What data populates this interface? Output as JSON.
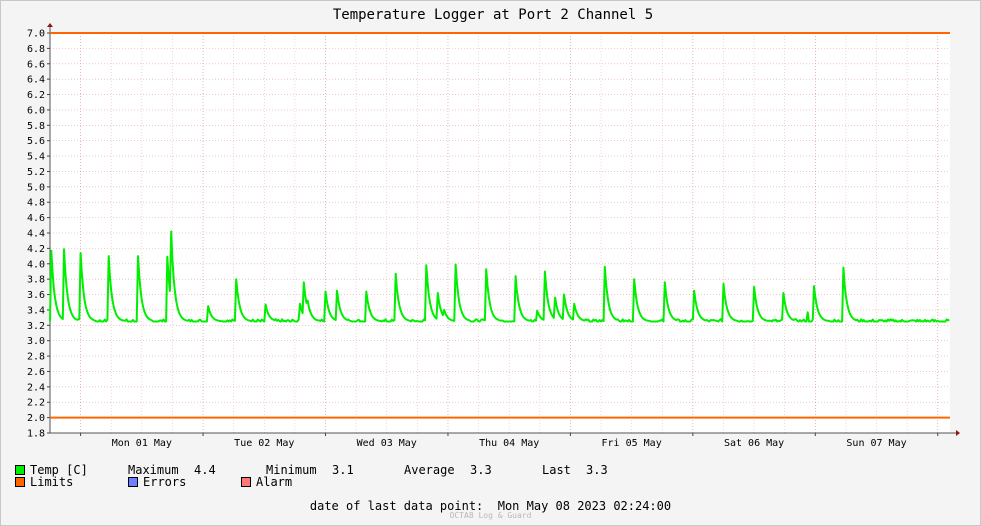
{
  "chart_data": {
    "type": "line",
    "title": "Temperature Logger at Port 2 Channel 5",
    "xlabel": "",
    "ylabel": "",
    "ylim": [
      1.8,
      7.0
    ],
    "y_ticks": [
      "1.8",
      "2.0",
      "2.2",
      "2.4",
      "2.6",
      "2.8",
      "3.0",
      "3.2",
      "3.4",
      "3.6",
      "3.8",
      "4.0",
      "4.2",
      "4.4",
      "4.6",
      "4.8",
      "5.0",
      "5.2",
      "5.4",
      "5.6",
      "5.8",
      "6.0",
      "6.2",
      "6.4",
      "6.6",
      "6.8",
      "7.0"
    ],
    "xlim": [
      "2023-04-30 18:00",
      "2023-05-08 02:24"
    ],
    "x_ticks": [
      {
        "label": "Mon 01 May",
        "date": "2023-05-01"
      },
      {
        "label": "Tue 02 May",
        "date": "2023-05-02"
      },
      {
        "label": "Wed 03 May",
        "date": "2023-05-03"
      },
      {
        "label": "Thu 04 May",
        "date": "2023-05-04"
      },
      {
        "label": "Fri 05 May",
        "date": "2023-05-05"
      },
      {
        "label": "Sat 06 May",
        "date": "2023-05-06"
      },
      {
        "label": "Sun 07 May",
        "date": "2023-05-07"
      }
    ],
    "grid": true,
    "baseline": 3.25,
    "series": [
      {
        "name": "Temp [C]",
        "color": "#00ee00",
        "peaks": [
          {
            "x": "2023-04-30 18:15",
            "y": 4.17
          },
          {
            "x": "2023-04-30 20:45",
            "y": 4.19
          },
          {
            "x": "2023-05-01 00:00",
            "y": 4.14
          },
          {
            "x": "2023-05-01 05:30",
            "y": 4.1
          },
          {
            "x": "2023-05-01 11:15",
            "y": 4.1
          },
          {
            "x": "2023-05-01 17:00",
            "y": 4.09
          },
          {
            "x": "2023-05-01 17:45",
            "y": 4.42
          },
          {
            "x": "2023-05-01 18:15",
            "y": 3.75
          },
          {
            "x": "2023-05-02 01:00",
            "y": 3.45
          },
          {
            "x": "2023-05-02 06:30",
            "y": 3.8
          },
          {
            "x": "2023-05-02 12:15",
            "y": 3.47
          },
          {
            "x": "2023-05-02 19:00",
            "y": 3.48
          },
          {
            "x": "2023-05-02 19:45",
            "y": 3.76
          },
          {
            "x": "2023-05-02 20:30",
            "y": 3.52
          },
          {
            "x": "2023-05-03 00:00",
            "y": 3.64
          },
          {
            "x": "2023-05-03 02:15",
            "y": 3.65
          },
          {
            "x": "2023-05-03 08:00",
            "y": 3.64
          },
          {
            "x": "2023-05-03 13:45",
            "y": 3.87
          },
          {
            "x": "2023-05-03 19:45",
            "y": 3.98
          },
          {
            "x": "2023-05-03 22:00",
            "y": 3.62
          },
          {
            "x": "2023-05-03 23:15",
            "y": 3.4
          },
          {
            "x": "2023-05-04 01:30",
            "y": 3.99
          },
          {
            "x": "2023-05-04 07:30",
            "y": 3.93
          },
          {
            "x": "2023-05-04 13:15",
            "y": 3.84
          },
          {
            "x": "2023-05-04 17:30",
            "y": 3.39
          },
          {
            "x": "2023-05-04 19:00",
            "y": 3.9
          },
          {
            "x": "2023-05-04 21:00",
            "y": 3.56
          },
          {
            "x": "2023-05-04 22:45",
            "y": 3.6
          },
          {
            "x": "2023-05-05 00:45",
            "y": 3.48
          },
          {
            "x": "2023-05-05 06:45",
            "y": 3.96
          },
          {
            "x": "2023-05-05 12:30",
            "y": 3.8
          },
          {
            "x": "2023-05-05 18:30",
            "y": 3.76
          },
          {
            "x": "2023-05-06 00:15",
            "y": 3.65
          },
          {
            "x": "2023-05-06 06:00",
            "y": 3.74
          },
          {
            "x": "2023-05-06 12:00",
            "y": 3.7
          },
          {
            "x": "2023-05-06 17:45",
            "y": 3.62
          },
          {
            "x": "2023-05-06 22:30",
            "y": 3.37
          },
          {
            "x": "2023-05-06 23:00",
            "y": 3.1
          },
          {
            "x": "2023-05-06 23:45",
            "y": 3.71
          },
          {
            "x": "2023-05-07 05:30",
            "y": 3.95
          }
        ]
      },
      {
        "name": "Limits",
        "color": "#ff6600",
        "values": [
          7.0,
          2.0
        ]
      }
    ]
  },
  "legend": {
    "temp": {
      "label": "Temp [C]",
      "color": "#00ee00",
      "maximum_label": "Maximum",
      "maximum": "4.4",
      "minimum_label": "Minimum",
      "minimum": "3.1",
      "average_label": "Average",
      "average": "3.3",
      "last_label": "Last",
      "last": "3.3"
    },
    "limits": {
      "label": "Limits",
      "color": "#ff6600"
    },
    "errors": {
      "label": "Errors",
      "color": "#6e7fff"
    },
    "alarm": {
      "label": "Alarm",
      "color": "#ff7777"
    }
  },
  "footer": {
    "date_label": "date of last data point:",
    "date_value": "Mon May 08 2023 02:24:00",
    "watermark": "OCTA8 Log & Guard"
  }
}
